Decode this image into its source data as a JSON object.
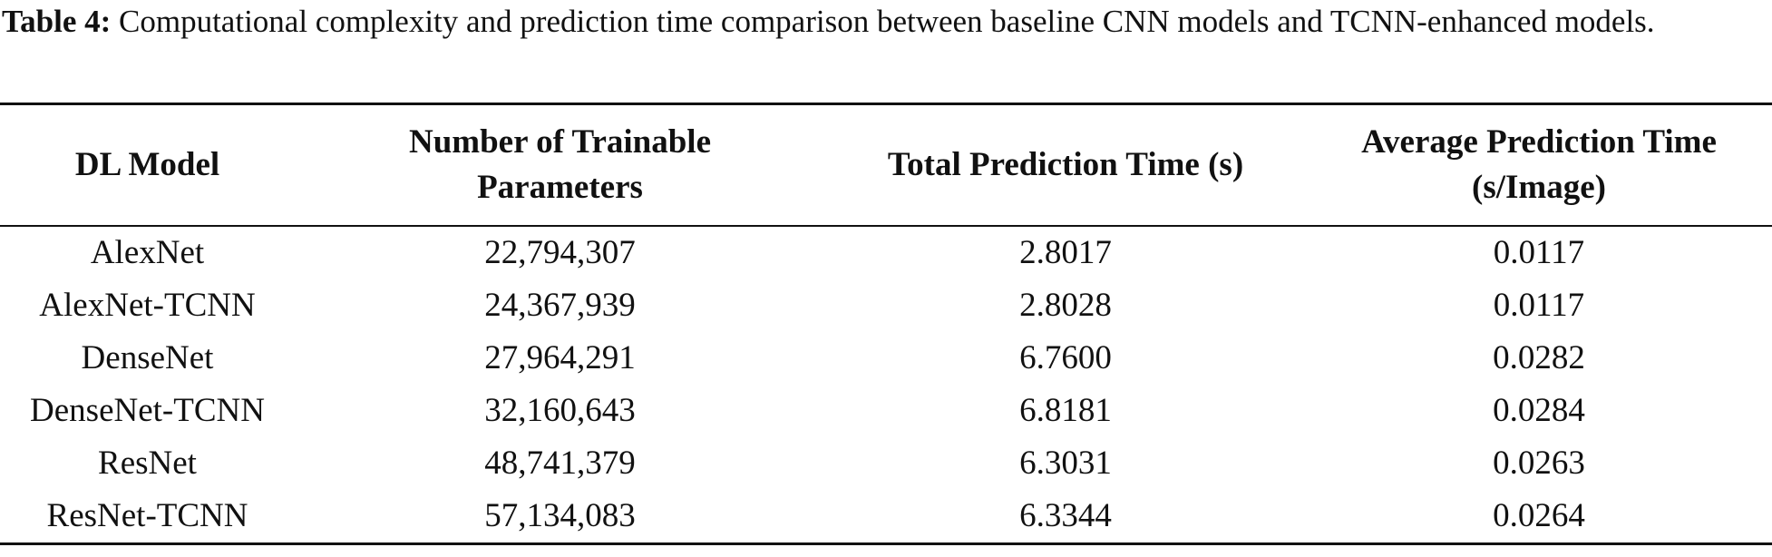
{
  "caption": {
    "label": "Table 4:",
    "text": "Computational complexity and prediction time comparison between baseline CNN models and TCNN-enhanced models."
  },
  "table": {
    "header": [
      "DL Model",
      "Number of Trainable Parameters",
      "Total Prediction Time (s)",
      "Average Prediction Time (s/Image)"
    ],
    "rows": [
      [
        "AlexNet",
        "22,794,307",
        "2.8017",
        "0.0117"
      ],
      [
        "AlexNet-TCNN",
        "24,367,939",
        "2.8028",
        "0.0117"
      ],
      [
        "DenseNet",
        "27,964,291",
        "6.7600",
        "0.0282"
      ],
      [
        "DenseNet-TCNN",
        "32,160,643",
        "6.8181",
        "0.0284"
      ],
      [
        "ResNet",
        "48,741,379",
        "6.3031",
        "0.0263"
      ],
      [
        "ResNet-TCNN",
        "57,134,083",
        "6.3344",
        "0.0264"
      ]
    ]
  }
}
